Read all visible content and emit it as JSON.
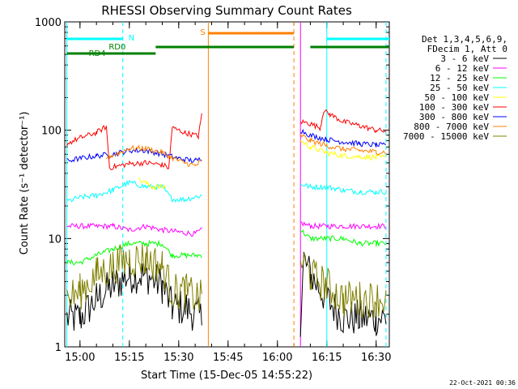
{
  "chart_data": {
    "type": "line",
    "title": "RHESSI Observing Summary Count Rates",
    "xlabel": "Start Time (15-Dec-05 14:55:22)",
    "ylabel": "Count Rate (s⁻¹ detector⁻¹)",
    "y_scale": "log",
    "ylim": [
      1,
      1000
    ],
    "xlim": [
      "14:55:22",
      "16:34"
    ],
    "x_ticks": [
      "15:00",
      "15:15",
      "15:30",
      "15:45",
      "16:00",
      "16:15",
      "16:30"
    ],
    "y_ticks": [
      "1",
      "10",
      "100",
      "1000"
    ],
    "legend_header": [
      "Det 1,3,4,5,6,9,",
      "FDecim 1, Att 0"
    ],
    "legend_position": "right",
    "timestamp": "22-Oct-2021 00:36",
    "series": [
      {
        "name": "3 - 6 keV",
        "color": "#000000",
        "segments": [
          [
            [
              "14:56",
              2
            ],
            [
              "15:00",
              2
            ],
            [
              "15:05",
              3
            ],
            [
              "15:10",
              4
            ],
            [
              "15:15",
              5
            ],
            [
              "15:20",
              5
            ],
            [
              "15:25",
              4
            ],
            [
              "15:28",
              2.5
            ],
            [
              "15:32",
              2.5
            ],
            [
              "15:37",
              2
            ]
          ],
          [
            [
              "16:07",
              2
            ],
            [
              "16:08",
              7
            ],
            [
              "16:10",
              5
            ],
            [
              "16:15",
              3
            ],
            [
              "16:20",
              2
            ],
            [
              "16:25",
              2
            ],
            [
              "16:30",
              2
            ],
            [
              "16:33",
              2
            ]
          ]
        ]
      },
      {
        "name": "6 - 12 keV",
        "color": "#ff00ff",
        "segments": [
          [
            [
              "14:56",
              13
            ],
            [
              "15:00",
              13
            ],
            [
              "15:05",
              13
            ],
            [
              "15:10",
              13
            ],
            [
              "15:15",
              12
            ],
            [
              "15:20",
              13
            ],
            [
              "15:25",
              12
            ],
            [
              "15:30",
              11.5
            ],
            [
              "15:35",
              11
            ],
            [
              "15:37",
              12
            ]
          ],
          [
            [
              "16:07",
              14
            ],
            [
              "16:10",
              13
            ],
            [
              "16:15",
              13
            ],
            [
              "16:20",
              13
            ],
            [
              "16:25",
              13
            ],
            [
              "16:30",
              13
            ],
            [
              "16:33",
              13
            ]
          ]
        ]
      },
      {
        "name": "12 - 25 keV",
        "color": "#00ff00",
        "segments": [
          [
            [
              "14:56",
              6
            ],
            [
              "15:00",
              6
            ],
            [
              "15:05",
              7
            ],
            [
              "15:10",
              8
            ],
            [
              "15:15",
              9
            ],
            [
              "15:20",
              9
            ],
            [
              "15:25",
              9
            ],
            [
              "15:28",
              7
            ],
            [
              "15:32",
              7
            ],
            [
              "15:37",
              7
            ]
          ],
          [
            [
              "16:07",
              12
            ],
            [
              "16:10",
              10
            ],
            [
              "16:15",
              10
            ],
            [
              "16:20",
              10
            ],
            [
              "16:25",
              9
            ],
            [
              "16:30",
              9
            ],
            [
              "16:33",
              9
            ]
          ]
        ]
      },
      {
        "name": "25 - 50 keV",
        "color": "#00ffff",
        "segments": [
          [
            [
              "14:56",
              22
            ],
            [
              "15:00",
              24
            ],
            [
              "15:05",
              25
            ],
            [
              "15:10",
              28
            ],
            [
              "15:15",
              33
            ],
            [
              "15:20",
              30
            ],
            [
              "15:25",
              30
            ],
            [
              "15:28",
              23
            ],
            [
              "15:32",
              23
            ],
            [
              "15:37",
              25
            ]
          ],
          [
            [
              "16:07",
              32
            ],
            [
              "16:10",
              30
            ],
            [
              "16:15",
              30
            ],
            [
              "16:20",
              28
            ],
            [
              "16:25",
              27
            ],
            [
              "16:30",
              27
            ],
            [
              "16:33",
              27
            ]
          ]
        ]
      },
      {
        "name": "50 - 100 keV",
        "color": "#ffff00",
        "segments": [
          [
            [
              "15:18",
              35
            ],
            [
              "15:22",
              30
            ],
            [
              "15:26",
              30
            ]
          ],
          [
            [
              "16:07",
              80
            ],
            [
              "16:10",
              70
            ],
            [
              "16:15",
              62
            ],
            [
              "16:20",
              58
            ],
            [
              "16:25",
              57
            ],
            [
              "16:30",
              56
            ],
            [
              "16:33",
              56
            ]
          ]
        ]
      },
      {
        "name": "100 - 300 keV",
        "color": "#ff0000",
        "segments": [
          [
            [
              "14:56",
              75
            ],
            [
              "15:00",
              85
            ],
            [
              "15:05",
              95
            ],
            [
              "15:08",
              108
            ],
            [
              "15:09",
              45
            ],
            [
              "15:12",
              47
            ],
            [
              "15:15",
              49
            ],
            [
              "15:20",
              50
            ],
            [
              "15:25",
              48
            ],
            [
              "15:27",
              45
            ],
            [
              "15:28",
              105
            ],
            [
              "15:32",
              95
            ],
            [
              "15:36",
              88
            ],
            [
              "15:37",
              140
            ]
          ],
          [
            [
              "16:07",
              120
            ],
            [
              "16:10",
              115
            ],
            [
              "16:13",
              105
            ],
            [
              "16:14",
              150
            ],
            [
              "16:16",
              140
            ],
            [
              "16:20",
              120
            ],
            [
              "16:25",
              110
            ],
            [
              "16:30",
              100
            ],
            [
              "16:33",
              98
            ]
          ]
        ]
      },
      {
        "name": "300 - 800 keV",
        "color": "#0000ff",
        "segments": [
          [
            [
              "14:56",
              52
            ],
            [
              "15:00",
              55
            ],
            [
              "15:05",
              58
            ],
            [
              "15:10",
              60
            ],
            [
              "15:15",
              65
            ],
            [
              "15:20",
              65
            ],
            [
              "15:25",
              60
            ],
            [
              "15:30",
              55
            ],
            [
              "15:35",
              52
            ],
            [
              "15:37",
              55
            ]
          ],
          [
            [
              "16:07",
              100
            ],
            [
              "16:10",
              90
            ],
            [
              "16:15",
              82
            ],
            [
              "16:20",
              78
            ],
            [
              "16:25",
              75
            ],
            [
              "16:30",
              73
            ],
            [
              "16:33",
              72
            ]
          ]
        ]
      },
      {
        "name": "800 - 7000 keV",
        "color": "#ff8000",
        "segments": [
          [
            [
              "15:08",
              56
            ],
            [
              "15:12",
              62
            ],
            [
              "15:15",
              68
            ],
            [
              "15:20",
              68
            ],
            [
              "15:25",
              62
            ],
            [
              "15:30",
              52
            ],
            [
              "15:35",
              47
            ],
            [
              "15:37",
              52
            ]
          ],
          [
            [
              "16:07",
              90
            ],
            [
              "16:10",
              80
            ],
            [
              "16:15",
              72
            ],
            [
              "16:20",
              67
            ],
            [
              "16:25",
              65
            ],
            [
              "16:30",
              63
            ],
            [
              "16:33",
              63
            ]
          ]
        ]
      },
      {
        "name": "7000 - 15000 keV",
        "color": "#808000",
        "segments": [
          [
            [
              "14:56",
              3
            ],
            [
              "15:00",
              3.5
            ],
            [
              "15:05",
              5
            ],
            [
              "15:10",
              6
            ],
            [
              "15:15",
              7
            ],
            [
              "15:20",
              7
            ],
            [
              "15:25",
              6
            ],
            [
              "15:28",
              3.5
            ],
            [
              "15:32",
              3.5
            ],
            [
              "15:37",
              3
            ]
          ],
          [
            [
              "16:07",
              7
            ],
            [
              "16:10",
              5
            ],
            [
              "16:15",
              4
            ],
            [
              "16:20",
              3
            ],
            [
              "16:25",
              3
            ],
            [
              "16:30",
              3
            ],
            [
              "16:33",
              3
            ]
          ]
        ]
      }
    ],
    "annotations": [
      {
        "label": "N",
        "color": "#00ffff",
        "bar": [
          "14:56",
          "15:13"
        ],
        "lines": [
          "15:13",
          "16:15"
        ],
        "bar2": [
          "16:15",
          "16:34"
        ]
      },
      {
        "label": "S",
        "color": "#ff8000",
        "bar": [
          "15:39",
          "16:05"
        ],
        "lines": [
          "15:39",
          "16:05"
        ]
      },
      {
        "label": "RD0",
        "color": "#008000",
        "bar": [
          "15:23",
          "16:05"
        ],
        "bar2": [
          "16:10",
          "16:34"
        ]
      },
      {
        "label": "RD4",
        "color": "#008000",
        "bar": [
          "14:56",
          "15:23"
        ]
      }
    ],
    "vertical_lines": [
      {
        "time": "14:56",
        "color": "#00ffff",
        "style": "solid"
      },
      {
        "time": "15:13",
        "color": "#00ffff",
        "style": "dashed"
      },
      {
        "time": "15:39",
        "color": "#ff8000",
        "style": "solid"
      },
      {
        "time": "16:05",
        "color": "#ff8000",
        "style": "dashed"
      },
      {
        "time": "16:07",
        "color": "#ff00ff",
        "style": "solid"
      },
      {
        "time": "16:15",
        "color": "#00ffff",
        "style": "solid"
      },
      {
        "time": "16:33",
        "color": "#00ffff",
        "style": "dashed"
      }
    ]
  }
}
